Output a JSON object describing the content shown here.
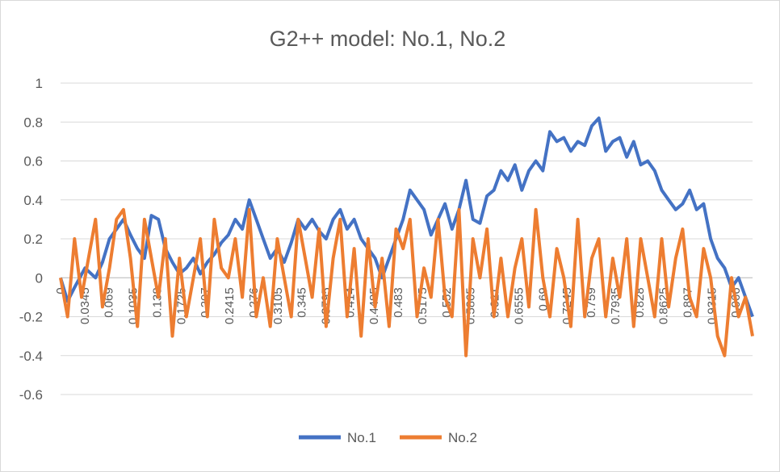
{
  "chart_data": {
    "type": "line",
    "title": "G2++ model: No.1, No.2",
    "xlabel": "",
    "ylabel": "",
    "ylim": [
      -0.6,
      1
    ],
    "yticks": [
      "1",
      "0.8",
      "0.6",
      "0.4",
      "0.2",
      "0",
      "-0.2",
      "-0.4",
      "-0.6"
    ],
    "xlim": [
      0,
      0.99
    ],
    "xtick_labels": [
      "0",
      "0.0345",
      "0.069",
      "0.1035",
      "0.138",
      "0.1725",
      "0.207",
      "0.2415",
      "0.276",
      "0.3105",
      "0.345",
      "0.3795",
      "0.414",
      "0.4485",
      "0.483",
      "0.5175",
      "0.552",
      "0.5865",
      "0.621",
      "0.6555",
      "0.69",
      "0.7245",
      "0.759",
      "0.7935",
      "0.828",
      "0.8625",
      "0.897",
      "0.9315",
      "0.966"
    ],
    "grid": "horizontal",
    "legend_position": "bottom",
    "series": [
      {
        "name": "No.1",
        "color": "#4472C4",
        "x": [
          0,
          0.01,
          0.02,
          0.035,
          0.05,
          0.06,
          0.07,
          0.08,
          0.09,
          0.1,
          0.11,
          0.12,
          0.13,
          0.14,
          0.15,
          0.16,
          0.17,
          0.18,
          0.19,
          0.2,
          0.21,
          0.22,
          0.23,
          0.24,
          0.25,
          0.26,
          0.27,
          0.28,
          0.29,
          0.3,
          0.31,
          0.32,
          0.33,
          0.34,
          0.35,
          0.36,
          0.37,
          0.38,
          0.39,
          0.4,
          0.41,
          0.42,
          0.43,
          0.44,
          0.45,
          0.46,
          0.47,
          0.48,
          0.49,
          0.5,
          0.51,
          0.52,
          0.53,
          0.54,
          0.55,
          0.56,
          0.57,
          0.58,
          0.59,
          0.6,
          0.61,
          0.62,
          0.63,
          0.64,
          0.65,
          0.66,
          0.67,
          0.68,
          0.69,
          0.7,
          0.71,
          0.72,
          0.73,
          0.74,
          0.75,
          0.76,
          0.77,
          0.78,
          0.79,
          0.8,
          0.81,
          0.82,
          0.83,
          0.84,
          0.85,
          0.86,
          0.87,
          0.88,
          0.89,
          0.9,
          0.91,
          0.92,
          0.93,
          0.94,
          0.95,
          0.96,
          0.97,
          0.98,
          0.99
        ],
        "values": [
          0.0,
          -0.12,
          -0.05,
          0.05,
          0.0,
          0.08,
          0.2,
          0.25,
          0.3,
          0.22,
          0.15,
          0.1,
          0.32,
          0.3,
          0.15,
          0.08,
          0.02,
          0.05,
          0.1,
          0.02,
          0.08,
          0.12,
          0.18,
          0.22,
          0.3,
          0.25,
          0.4,
          0.3,
          0.2,
          0.1,
          0.15,
          0.08,
          0.18,
          0.3,
          0.25,
          0.3,
          0.24,
          0.2,
          0.3,
          0.35,
          0.25,
          0.3,
          0.2,
          0.15,
          0.1,
          0.0,
          0.1,
          0.2,
          0.3,
          0.45,
          0.4,
          0.35,
          0.22,
          0.3,
          0.38,
          0.25,
          0.35,
          0.5,
          0.3,
          0.28,
          0.42,
          0.45,
          0.55,
          0.5,
          0.58,
          0.45,
          0.55,
          0.6,
          0.55,
          0.75,
          0.7,
          0.72,
          0.65,
          0.7,
          0.68,
          0.78,
          0.82,
          0.65,
          0.7,
          0.72,
          0.62,
          0.7,
          0.58,
          0.6,
          0.55,
          0.45,
          0.4,
          0.35,
          0.38,
          0.45,
          0.35,
          0.38,
          0.2,
          0.1,
          0.05,
          -0.05,
          0.0,
          -0.1,
          -0.2
        ]
      },
      {
        "name": "No.2",
        "color": "#ED7D31",
        "x": [
          0,
          0.01,
          0.02,
          0.03,
          0.04,
          0.05,
          0.06,
          0.07,
          0.08,
          0.09,
          0.1,
          0.11,
          0.12,
          0.13,
          0.14,
          0.15,
          0.16,
          0.17,
          0.18,
          0.19,
          0.2,
          0.21,
          0.22,
          0.23,
          0.24,
          0.25,
          0.26,
          0.27,
          0.28,
          0.29,
          0.3,
          0.31,
          0.32,
          0.33,
          0.34,
          0.35,
          0.36,
          0.37,
          0.38,
          0.39,
          0.4,
          0.41,
          0.42,
          0.43,
          0.44,
          0.45,
          0.46,
          0.47,
          0.48,
          0.49,
          0.5,
          0.51,
          0.52,
          0.53,
          0.54,
          0.55,
          0.56,
          0.57,
          0.58,
          0.59,
          0.6,
          0.61,
          0.62,
          0.63,
          0.64,
          0.65,
          0.66,
          0.67,
          0.68,
          0.69,
          0.7,
          0.71,
          0.72,
          0.73,
          0.74,
          0.75,
          0.76,
          0.77,
          0.78,
          0.79,
          0.8,
          0.81,
          0.82,
          0.83,
          0.84,
          0.85,
          0.86,
          0.87,
          0.88,
          0.89,
          0.9,
          0.91,
          0.92,
          0.93,
          0.94,
          0.95,
          0.96,
          0.97,
          0.98,
          0.99
        ],
        "values": [
          0.0,
          -0.2,
          0.2,
          -0.1,
          0.1,
          0.3,
          -0.15,
          0.05,
          0.3,
          0.35,
          0.1,
          -0.25,
          0.3,
          0.1,
          -0.1,
          0.2,
          -0.3,
          0.1,
          -0.2,
          0.0,
          0.2,
          -0.2,
          0.3,
          0.05,
          0.0,
          0.2,
          -0.1,
          0.35,
          -0.2,
          0.0,
          -0.25,
          0.2,
          0.0,
          -0.2,
          0.3,
          0.1,
          -0.1,
          0.25,
          -0.25,
          0.1,
          0.3,
          -0.2,
          0.15,
          -0.3,
          0.2,
          -0.15,
          0.1,
          -0.25,
          0.25,
          0.15,
          0.3,
          -0.2,
          0.05,
          -0.1,
          0.3,
          -0.1,
          -0.2,
          0.35,
          -0.4,
          0.2,
          0.0,
          0.25,
          -0.2,
          0.1,
          -0.2,
          0.05,
          0.2,
          -0.15,
          0.35,
          0.0,
          -0.2,
          0.15,
          0.0,
          -0.25,
          0.3,
          -0.2,
          0.1,
          0.2,
          -0.2,
          0.1,
          -0.1,
          0.2,
          -0.25,
          0.2,
          0.0,
          -0.2,
          0.2,
          -0.15,
          0.1,
          0.25,
          -0.1,
          -0.2,
          0.15,
          0.0,
          -0.3,
          -0.4,
          0.0,
          -0.2,
          -0.1,
          -0.3
        ]
      }
    ]
  }
}
